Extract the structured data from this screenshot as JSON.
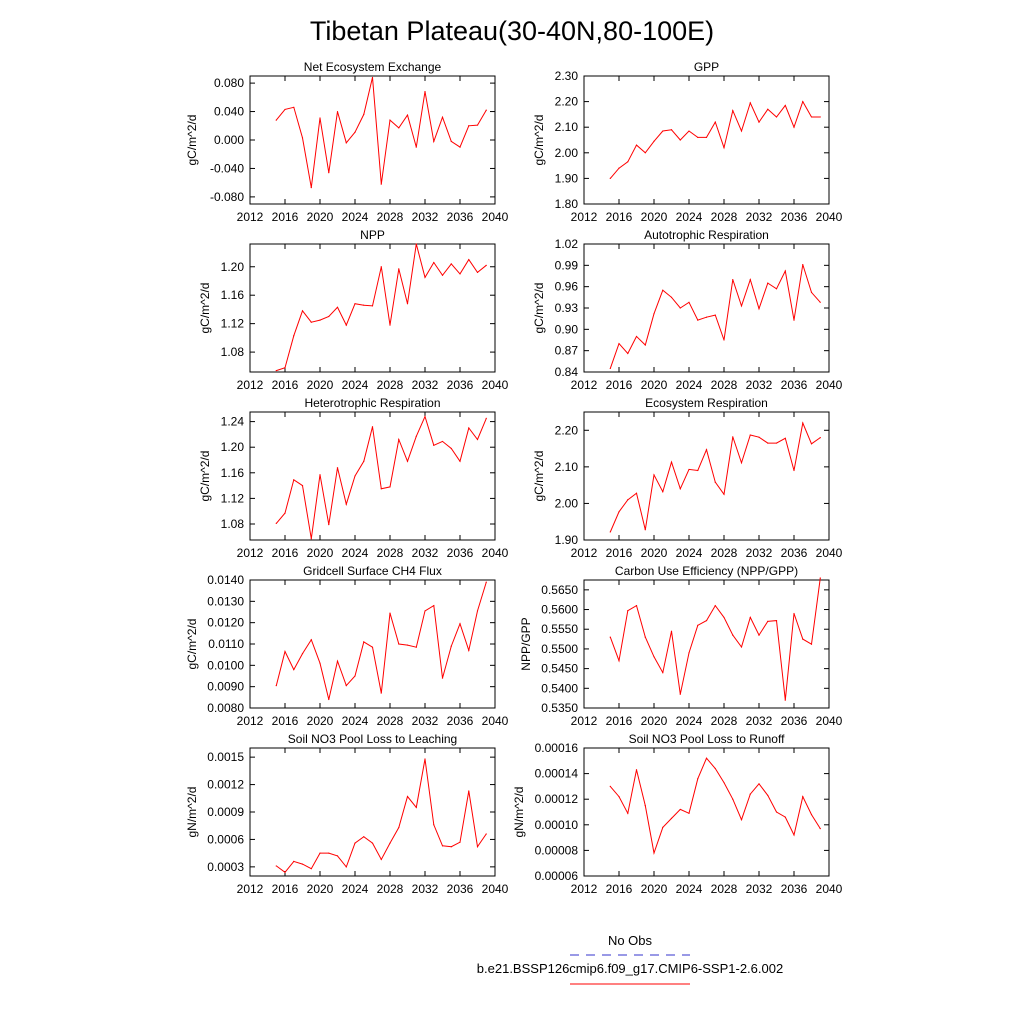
{
  "figure": {
    "title": "Tibetan Plateau(30-40N,80-100E)",
    "legend": {
      "obs_label": "No Obs",
      "obs_color": "#3333cc",
      "model_label": "b.e21.BSSP126cmip6.f09_g17.CMIP6-SSP1-2.6.002",
      "model_color": "#ff0000"
    },
    "line_color": "#ff0000"
  },
  "chart_data": [
    {
      "type": "line",
      "title": "Net Ecosystem Exchange",
      "ylabel": "gC/m^2/d",
      "xlim": [
        2012,
        2040
      ],
      "xticks": [
        2012,
        2016,
        2020,
        2024,
        2028,
        2032,
        2036,
        2040
      ],
      "ylim": [
        -0.09,
        0.09
      ],
      "yticks": [
        -0.08,
        -0.04,
        0.0,
        0.04,
        0.08
      ],
      "ytick_labels": [
        "-0.080",
        "-0.040",
        "0.000",
        "0.040",
        "0.080"
      ],
      "x": [
        2015,
        2016,
        2017,
        2018,
        2019,
        2020,
        2021,
        2022,
        2023,
        2024,
        2025,
        2026,
        2027,
        2028,
        2029,
        2030,
        2031,
        2032,
        2033,
        2034,
        2035,
        2036,
        2037,
        2038,
        2039
      ],
      "values": [
        0.028,
        0.043,
        0.046,
        0.003,
        -0.067,
        0.031,
        -0.046,
        0.04,
        -0.004,
        0.011,
        0.036,
        0.088,
        -0.062,
        0.028,
        0.017,
        0.035,
        -0.01,
        0.068,
        -0.002,
        0.032,
        -0.002,
        -0.01,
        0.02,
        0.021,
        0.042
      ]
    },
    {
      "type": "line",
      "title": "GPP",
      "ylabel": "gC/m^2/d",
      "xlim": [
        2012,
        2040
      ],
      "xticks": [
        2012,
        2016,
        2020,
        2024,
        2028,
        2032,
        2036,
        2040
      ],
      "ylim": [
        1.8,
        2.3
      ],
      "yticks": [
        1.8,
        1.9,
        2.0,
        2.1,
        2.2,
        2.3
      ],
      "ytick_labels": [
        "1.80",
        "1.90",
        "2.00",
        "2.10",
        "2.20",
        "2.30"
      ],
      "x": [
        2015,
        2016,
        2017,
        2018,
        2019,
        2020,
        2021,
        2022,
        2023,
        2024,
        2025,
        2026,
        2027,
        2028,
        2029,
        2030,
        2031,
        2032,
        2033,
        2034,
        2035,
        2036,
        2037,
        2038,
        2039
      ],
      "values": [
        1.9,
        1.94,
        1.965,
        2.03,
        2.0,
        2.045,
        2.085,
        2.09,
        2.05,
        2.085,
        2.06,
        2.06,
        2.12,
        2.02,
        2.165,
        2.085,
        2.195,
        2.12,
        2.17,
        2.14,
        2.185,
        2.1,
        2.2,
        2.14,
        2.14
      ]
    },
    {
      "type": "line",
      "title": "NPP",
      "ylabel": "gC/m^2/d",
      "xlim": [
        2012,
        2040
      ],
      "xticks": [
        2012,
        2016,
        2020,
        2024,
        2028,
        2032,
        2036,
        2040
      ],
      "ylim": [
        1.052,
        1.232
      ],
      "yticks": [
        1.08,
        1.12,
        1.16,
        1.2
      ],
      "ytick_labels": [
        "1.08",
        "1.12",
        "1.16",
        "1.20"
      ],
      "x": [
        2015,
        2016,
        2017,
        2018,
        2019,
        2020,
        2021,
        2022,
        2023,
        2024,
        2025,
        2026,
        2027,
        2028,
        2029,
        2030,
        2031,
        2032,
        2033,
        2034,
        2035,
        2036,
        2037,
        2038,
        2039
      ],
      "values": [
        1.054,
        1.058,
        1.103,
        1.138,
        1.122,
        1.125,
        1.13,
        1.143,
        1.118,
        1.148,
        1.146,
        1.145,
        1.2,
        1.118,
        1.197,
        1.148,
        1.232,
        1.185,
        1.206,
        1.188,
        1.204,
        1.19,
        1.21,
        1.192,
        1.202
      ]
    },
    {
      "type": "line",
      "title": "Autotrophic Respiration",
      "ylabel": "gC/m^2/d",
      "xlim": [
        2012,
        2040
      ],
      "xticks": [
        2012,
        2016,
        2020,
        2024,
        2028,
        2032,
        2036,
        2040
      ],
      "ylim": [
        0.84,
        1.02
      ],
      "yticks": [
        0.84,
        0.87,
        0.9,
        0.93,
        0.96,
        0.99,
        1.02
      ],
      "ytick_labels": [
        "0.84",
        "0.87",
        "0.90",
        "0.93",
        "0.96",
        "0.99",
        "1.02"
      ],
      "x": [
        2015,
        2016,
        2017,
        2018,
        2019,
        2020,
        2021,
        2022,
        2023,
        2024,
        2025,
        2026,
        2027,
        2028,
        2029,
        2030,
        2031,
        2032,
        2033,
        2034,
        2035,
        2036,
        2037,
        2038,
        2039
      ],
      "values": [
        0.845,
        0.88,
        0.866,
        0.89,
        0.878,
        0.922,
        0.955,
        0.945,
        0.93,
        0.938,
        0.913,
        0.917,
        0.92,
        0.885,
        0.97,
        0.933,
        0.97,
        0.929,
        0.965,
        0.957,
        0.982,
        0.913,
        0.991,
        0.952,
        0.938
      ]
    },
    {
      "type": "line",
      "title": "Heterotrophic Respiration",
      "ylabel": "gC/m^2/d",
      "xlim": [
        2012,
        2040
      ],
      "xticks": [
        2012,
        2016,
        2020,
        2024,
        2028,
        2032,
        2036,
        2040
      ],
      "ylim": [
        1.055,
        1.255
      ],
      "yticks": [
        1.08,
        1.12,
        1.16,
        1.2,
        1.24
      ],
      "ytick_labels": [
        "1.08",
        "1.12",
        "1.16",
        "1.20",
        "1.24"
      ],
      "x": [
        2015,
        2016,
        2017,
        2018,
        2019,
        2020,
        2021,
        2022,
        2023,
        2024,
        2025,
        2026,
        2027,
        2028,
        2029,
        2030,
        2031,
        2032,
        2033,
        2034,
        2035,
        2036,
        2037,
        2038,
        2039
      ],
      "values": [
        1.081,
        1.097,
        1.149,
        1.14,
        1.057,
        1.157,
        1.079,
        1.168,
        1.111,
        1.155,
        1.178,
        1.232,
        1.135,
        1.138,
        1.212,
        1.178,
        1.217,
        1.248,
        1.203,
        1.209,
        1.198,
        1.178,
        1.23,
        1.212,
        1.245
      ]
    },
    {
      "type": "line",
      "title": "Ecosystem Respiration",
      "ylabel": "gC/m^2/d",
      "xlim": [
        2012,
        2040
      ],
      "xticks": [
        2012,
        2016,
        2020,
        2024,
        2028,
        2032,
        2036,
        2040
      ],
      "ylim": [
        1.9,
        2.25
      ],
      "yticks": [
        1.9,
        2.0,
        2.1,
        2.2
      ],
      "ytick_labels": [
        "1.90",
        "2.00",
        "2.10",
        "2.20"
      ],
      "x": [
        2015,
        2016,
        2017,
        2018,
        2019,
        2020,
        2021,
        2022,
        2023,
        2024,
        2025,
        2026,
        2027,
        2028,
        2029,
        2030,
        2031,
        2032,
        2033,
        2034,
        2035,
        2036,
        2037,
        2038,
        2039
      ],
      "values": [
        1.922,
        1.977,
        2.01,
        2.028,
        1.928,
        2.078,
        2.032,
        2.113,
        2.04,
        2.093,
        2.09,
        2.147,
        2.058,
        2.025,
        2.182,
        2.111,
        2.187,
        2.181,
        2.165,
        2.165,
        2.178,
        2.09,
        2.22,
        2.163,
        2.18
      ]
    },
    {
      "type": "line",
      "title": "Gridcell Surface CH4 Flux",
      "ylabel": "gC/m^2/d",
      "xlim": [
        2012,
        2040
      ],
      "xticks": [
        2012,
        2016,
        2020,
        2024,
        2028,
        2032,
        2036,
        2040
      ],
      "ylim": [
        0.008,
        0.014
      ],
      "yticks": [
        0.008,
        0.009,
        0.01,
        0.011,
        0.012,
        0.013,
        0.014
      ],
      "ytick_labels": [
        "0.0080",
        "0.0090",
        "0.0100",
        "0.0110",
        "0.0120",
        "0.0130",
        "0.0140"
      ],
      "x": [
        2015,
        2016,
        2017,
        2018,
        2019,
        2020,
        2021,
        2022,
        2023,
        2024,
        2025,
        2026,
        2027,
        2028,
        2029,
        2030,
        2031,
        2032,
        2033,
        2034,
        2035,
        2036,
        2037,
        2038,
        2039
      ],
      "values": [
        0.00905,
        0.01065,
        0.0098,
        0.01055,
        0.0112,
        0.0101,
        0.0084,
        0.0102,
        0.00905,
        0.0095,
        0.0111,
        0.01085,
        0.0087,
        0.01245,
        0.011,
        0.01095,
        0.01085,
        0.01255,
        0.0128,
        0.0094,
        0.0109,
        0.01195,
        0.0107,
        0.01255,
        0.0139
      ]
    },
    {
      "type": "line",
      "title": "Carbon Use Efficiency (NPP/GPP)",
      "ylabel": "NPP/GPP",
      "xlim": [
        2012,
        2040
      ],
      "xticks": [
        2012,
        2016,
        2020,
        2024,
        2028,
        2032,
        2036,
        2040
      ],
      "ylim": [
        0.535,
        0.5675
      ],
      "yticks": [
        0.535,
        0.54,
        0.545,
        0.55,
        0.555,
        0.56,
        0.565
      ],
      "ytick_labels": [
        "0.5350",
        "0.5400",
        "0.5450",
        "0.5500",
        "0.5550",
        "0.5600",
        "0.5650"
      ],
      "x": [
        2015,
        2016,
        2017,
        2018,
        2019,
        2020,
        2021,
        2022,
        2023,
        2024,
        2025,
        2026,
        2027,
        2028,
        2029,
        2030,
        2031,
        2032,
        2033,
        2034,
        2035,
        2036,
        2037,
        2038,
        2039
      ],
      "values": [
        0.553,
        0.547,
        0.5597,
        0.561,
        0.553,
        0.548,
        0.544,
        0.5545,
        0.5385,
        0.549,
        0.556,
        0.5572,
        0.561,
        0.558,
        0.5535,
        0.5505,
        0.558,
        0.5535,
        0.557,
        0.5572,
        0.537,
        0.559,
        0.5525,
        0.5512,
        0.568
      ]
    },
    {
      "type": "line",
      "title": "Soil NO3 Pool Loss to Leaching",
      "ylabel": "gN/m^2/d",
      "xlim": [
        2012,
        2040
      ],
      "xticks": [
        2012,
        2016,
        2020,
        2024,
        2028,
        2032,
        2036,
        2040
      ],
      "ylim": [
        0.0002,
        0.0016
      ],
      "yticks": [
        0.0003,
        0.0006,
        0.0009,
        0.0012,
        0.0015
      ],
      "ytick_labels": [
        "0.0003",
        "0.0006",
        "0.0009",
        "0.0012",
        "0.0015"
      ],
      "x": [
        2015,
        2016,
        2017,
        2018,
        2019,
        2020,
        2021,
        2022,
        2023,
        2024,
        2025,
        2026,
        2027,
        2028,
        2029,
        2030,
        2031,
        2032,
        2033,
        2034,
        2035,
        2036,
        2037,
        2038,
        2039
      ],
      "values": [
        0.00031,
        0.00024,
        0.00036,
        0.00033,
        0.00028,
        0.00045,
        0.00045,
        0.00042,
        0.0003,
        0.00056,
        0.00063,
        0.00056,
        0.00038,
        0.00056,
        0.00073,
        0.00107,
        0.00095,
        0.00148,
        0.00076,
        0.00053,
        0.00052,
        0.00057,
        0.00113,
        0.00052,
        0.00066
      ]
    },
    {
      "type": "line",
      "title": "Soil NO3 Pool Loss to Runoff",
      "ylabel": "gN/m^2/d",
      "xlim": [
        2012,
        2040
      ],
      "xticks": [
        2012,
        2016,
        2020,
        2024,
        2028,
        2032,
        2036,
        2040
      ],
      "ylim": [
        6e-05,
        0.00016
      ],
      "yticks": [
        6e-05,
        8e-05,
        0.0001,
        0.00012,
        0.00014,
        0.00016
      ],
      "ytick_labels": [
        "0.00006",
        "0.00008",
        "0.00010",
        "0.00012",
        "0.00014",
        "0.00016"
      ],
      "x": [
        2015,
        2016,
        2017,
        2018,
        2019,
        2020,
        2021,
        2022,
        2023,
        2024,
        2025,
        2026,
        2027,
        2028,
        2029,
        2030,
        2031,
        2032,
        2033,
        2034,
        2035,
        2036,
        2037,
        2038,
        2039
      ],
      "values": [
        0.00013,
        0.000122,
        0.000109,
        0.000143,
        0.000115,
        7.8e-05,
        9.8e-05,
        0.000105,
        0.000112,
        0.000109,
        0.000136,
        0.000152,
        0.000144,
        0.000133,
        0.00012,
        0.000104,
        0.000124,
        0.000132,
        0.000123,
        0.00011,
        0.000106,
        9.2e-05,
        0.000122,
        0.000108,
        9.7e-05
      ]
    }
  ]
}
